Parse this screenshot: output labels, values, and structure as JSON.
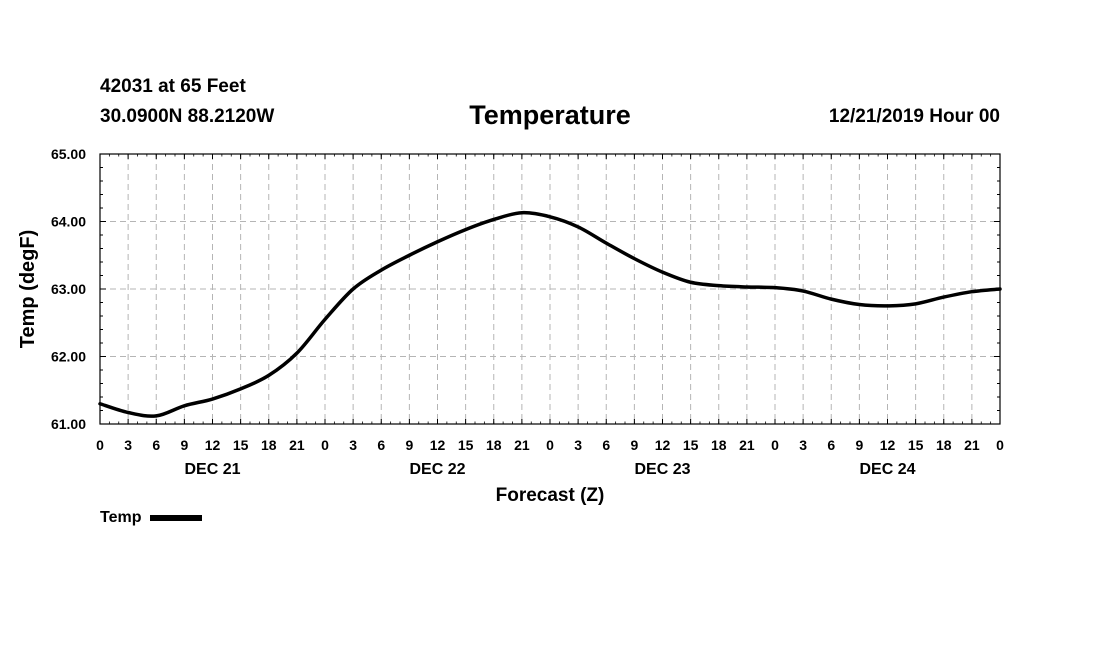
{
  "header": {
    "station": "42031 at 65 Feet",
    "coordinates": "30.0900N 88.2120W",
    "title": "Temperature",
    "issued": "12/21/2019 Hour 00"
  },
  "chart_data": {
    "type": "line",
    "title": "Temperature",
    "xlabel": "Forecast (Z)",
    "ylabel": "Temp (degF)",
    "ylim": [
      61.0,
      65.0
    ],
    "yticks": [
      "61.00",
      "62.00",
      "63.00",
      "64.00",
      "65.00"
    ],
    "xlim_hours": [
      0,
      96
    ],
    "xtick_labels": [
      "0",
      "3",
      "6",
      "9",
      "12",
      "15",
      "18",
      "21",
      "0",
      "3",
      "6",
      "9",
      "12",
      "15",
      "18",
      "21",
      "0",
      "3",
      "6",
      "9",
      "12",
      "15",
      "18",
      "21",
      "0",
      "3",
      "6",
      "9",
      "12",
      "15",
      "18",
      "21",
      "0"
    ],
    "day_labels": [
      {
        "label": "DEC 21",
        "hour": 12
      },
      {
        "label": "DEC 22",
        "hour": 36
      },
      {
        "label": "DEC 23",
        "hour": 60
      },
      {
        "label": "DEC 24",
        "hour": 84
      }
    ],
    "grid": true,
    "series": [
      {
        "name": "Temp",
        "x_hours": [
          0,
          3,
          6,
          9,
          12,
          15,
          18,
          21,
          24,
          27,
          30,
          33,
          36,
          39,
          42,
          45,
          48,
          51,
          54,
          57,
          60,
          63,
          66,
          69,
          72,
          75,
          78,
          81,
          84,
          87,
          90,
          93,
          96
        ],
        "values": [
          61.3,
          61.17,
          61.12,
          61.27,
          61.37,
          61.52,
          61.72,
          62.05,
          62.55,
          63.0,
          63.28,
          63.5,
          63.7,
          63.88,
          64.03,
          64.13,
          64.07,
          63.92,
          63.68,
          63.45,
          63.25,
          63.1,
          63.05,
          63.03,
          63.02,
          62.97,
          62.85,
          62.77,
          62.75,
          62.78,
          62.88,
          62.96,
          63.0
        ]
      }
    ],
    "legend": {
      "label": "Temp",
      "position": "bottom-left"
    }
  }
}
